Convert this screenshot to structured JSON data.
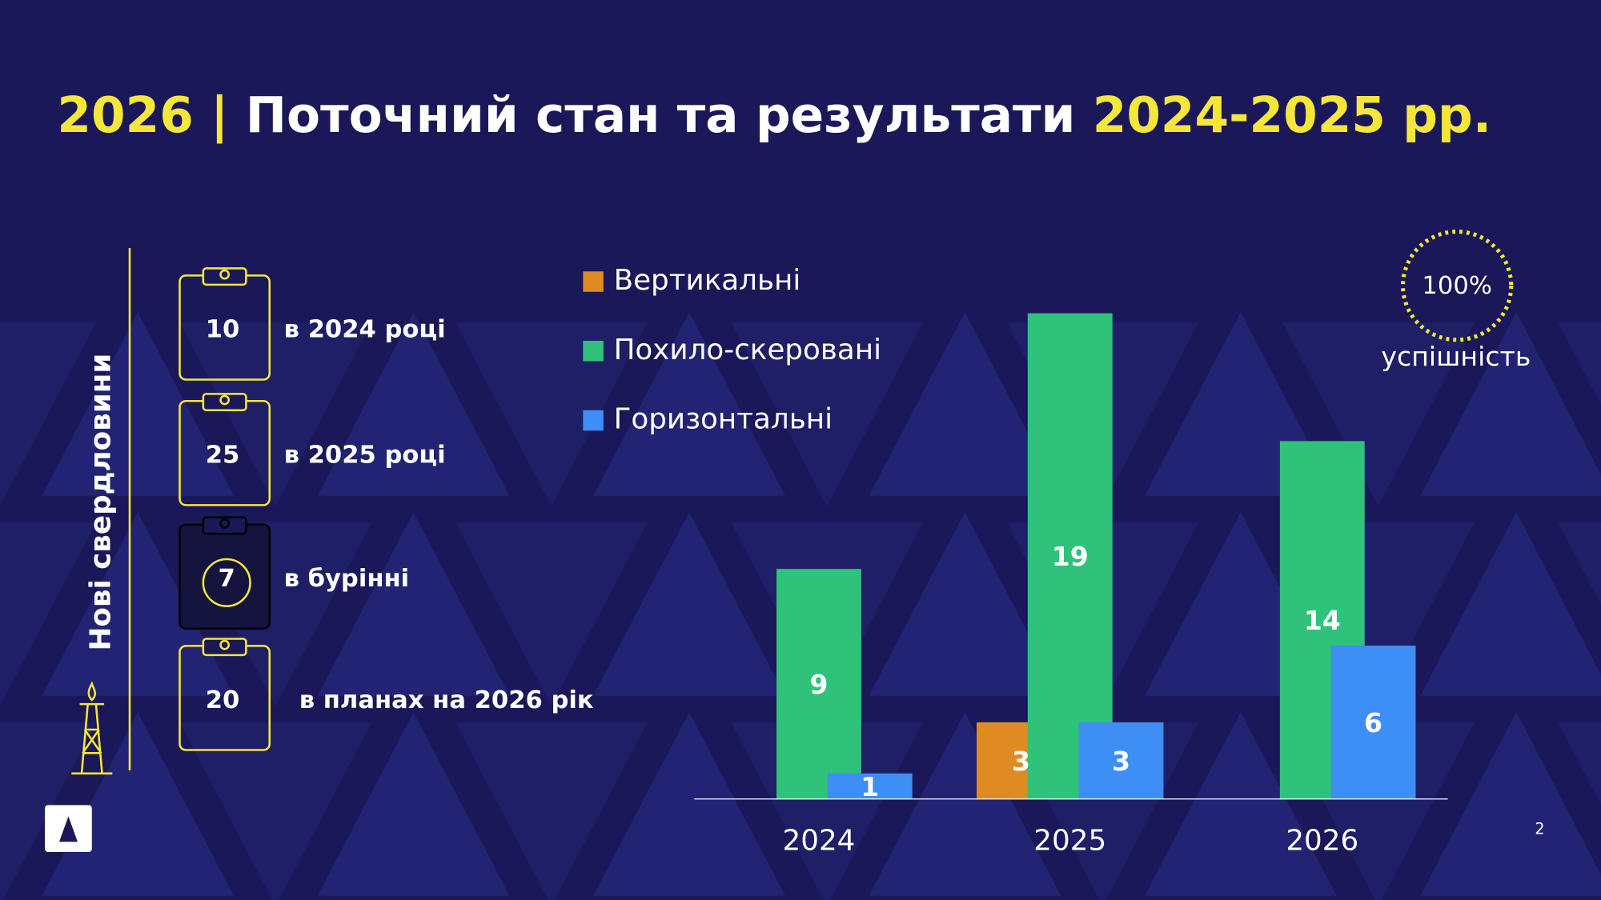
{
  "title_parts": [
    "2026 | ",
    "Поточний стан та результати ",
    "2024-2025 рр."
  ],
  "wells": {
    "heading": "Нові свердловини",
    "items": [
      {
        "count": 10,
        "label": "в 2024 році"
      },
      {
        "count": 25,
        "label": "в 2025 році"
      },
      {
        "count": 7,
        "label": "в бурінні"
      },
      {
        "count": 20,
        "label": "в планах на 2026 рік"
      }
    ]
  },
  "success": {
    "value": "100%",
    "label": "успішність"
  },
  "page_number": 2,
  "chart_data": {
    "type": "bar",
    "categories": [
      "2024",
      "2025",
      "2026"
    ],
    "series": [
      {
        "name": "Вертикальні",
        "color": "#e08a24",
        "values": [
          null,
          3,
          null
        ]
      },
      {
        "name": "Похило-скеровані",
        "color": "#2ec27a",
        "values": [
          9,
          19,
          14
        ]
      },
      {
        "name": "Горизонтальні",
        "color": "#3d8ef5",
        "values": [
          1,
          3,
          6
        ]
      }
    ]
  }
}
